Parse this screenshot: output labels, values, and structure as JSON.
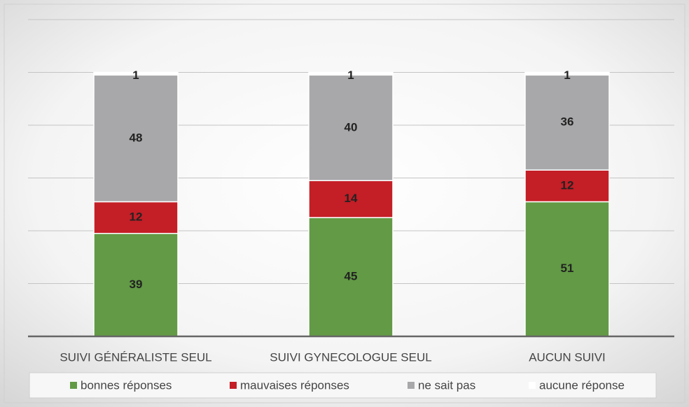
{
  "chart_data": {
    "type": "stacked_bar",
    "categories": [
      "SUIVI GÉNÉRALISTE SEUL",
      "SUIVI GYNECOLOGUE SEUL",
      "AUCUN SUIVI"
    ],
    "series": [
      {
        "name": "bonnes réponses",
        "color": "#629a45",
        "values": [
          39,
          45,
          51
        ]
      },
      {
        "name": "mauvaises réponses",
        "color": "#c41e26",
        "values": [
          12,
          14,
          12
        ]
      },
      {
        "name": "ne sait pas",
        "color": "#a8a8aa",
        "values": [
          48,
          40,
          36
        ]
      },
      {
        "name": "aucune réponse",
        "color": "#ffffff",
        "values": [
          1,
          1,
          1
        ]
      }
    ],
    "ylim": [
      0,
      120
    ],
    "yticks": [
      0,
      20,
      40,
      60,
      80,
      100,
      120
    ],
    "grid": true,
    "legend": "bottom"
  }
}
